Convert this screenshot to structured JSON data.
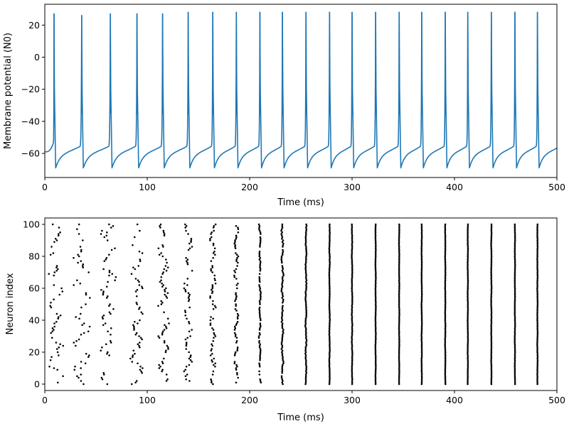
{
  "chart_data": [
    {
      "type": "line",
      "xlabel": "Time (ms)",
      "ylabel": "Membrane potential (N0)",
      "xlim": [
        0,
        500
      ],
      "ylim": [
        -75,
        33
      ],
      "xticks": [
        0,
        100,
        200,
        300,
        400,
        500
      ],
      "yticks": [
        -60,
        -40,
        -20,
        0,
        20
      ],
      "color": "#1f77b4",
      "series": [
        {
          "start_value": -59,
          "end_value": -56,
          "trough": -69,
          "peaks": [
            {
              "t": 9,
              "v": 27
            },
            {
              "t": 36,
              "v": 26
            },
            {
              "t": 64,
              "v": 27
            },
            {
              "t": 90,
              "v": 27
            },
            {
              "t": 115,
              "v": 27
            },
            {
              "t": 140,
              "v": 28
            },
            {
              "t": 164,
              "v": 28
            },
            {
              "t": 187,
              "v": 28
            },
            {
              "t": 210,
              "v": 28
            },
            {
              "t": 232,
              "v": 28
            },
            {
              "t": 255,
              "v": 28
            },
            {
              "t": 278,
              "v": 28
            },
            {
              "t": 300,
              "v": 28
            },
            {
              "t": 323,
              "v": 28
            },
            {
              "t": 346,
              "v": 28
            },
            {
              "t": 368,
              "v": 28
            },
            {
              "t": 391,
              "v": 28
            },
            {
              "t": 413,
              "v": 28
            },
            {
              "t": 436,
              "v": 28
            },
            {
              "t": 459,
              "v": 28
            },
            {
              "t": 481,
              "v": 28
            }
          ]
        }
      ]
    },
    {
      "type": "scatter",
      "xlabel": "Time (ms)",
      "ylabel": "Neuron index",
      "xlim": [
        0,
        500
      ],
      "ylim": [
        -4,
        104
      ],
      "xticks": [
        0,
        100,
        200,
        300,
        400,
        500
      ],
      "yticks": [
        0,
        20,
        40,
        60,
        80,
        100
      ],
      "color": "#000000",
      "neuron_count": 100,
      "burst_times": [
        10,
        36,
        62,
        90,
        116,
        140,
        164,
        187,
        210,
        232,
        255,
        278,
        300,
        323,
        346,
        368,
        391,
        413,
        436,
        459,
        481
      ],
      "burst_spread": [
        8,
        8,
        7,
        6,
        5,
        4,
        3,
        2,
        1,
        1,
        0.6,
        0.3,
        0.3,
        0.2,
        0.2,
        0.2,
        0.2,
        0.2,
        0.2,
        0.2,
        0.2
      ],
      "burst_participation": [
        0.55,
        0.5,
        0.55,
        0.6,
        0.6,
        0.6,
        0.62,
        0.7,
        0.85,
        0.95,
        1,
        1,
        1,
        1,
        1,
        1,
        1,
        1,
        1,
        1,
        1
      ]
    }
  ]
}
